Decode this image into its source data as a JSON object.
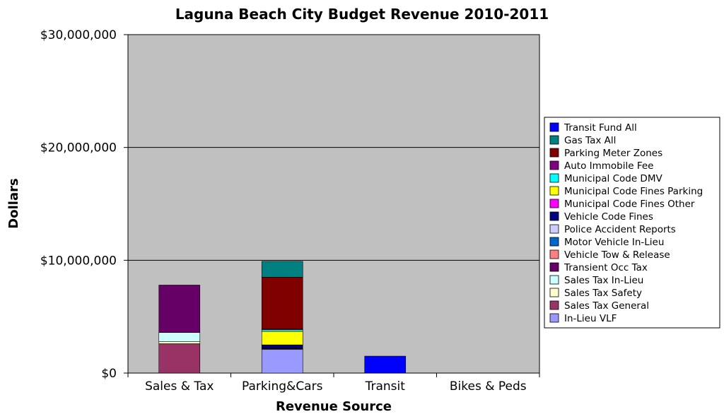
{
  "chart_data": {
    "type": "bar",
    "stacked": true,
    "title": "Laguna Beach City Budget Revenue 2010-2011",
    "xlabel": "Revenue Source",
    "ylabel": "Dollars",
    "ylim": [
      0,
      30000000
    ],
    "y_ticks": [
      0,
      10000000,
      20000000,
      30000000
    ],
    "y_tick_labels": [
      "$0",
      "$10,000,000",
      "$20,000,000",
      "$30,000,000"
    ],
    "grid": true,
    "legend_position": "right",
    "plot_background": "#c0c0c0",
    "categories": [
      "Sales & Tax",
      "Parking&Cars",
      "Transit",
      "Bikes & Peds"
    ],
    "series": [
      {
        "name": "In-Lieu VLF",
        "color": "#9999ff",
        "values": [
          0,
          2100000,
          0,
          0
        ]
      },
      {
        "name": "Sales Tax General",
        "color": "#993366",
        "values": [
          2600000,
          0,
          0,
          0
        ]
      },
      {
        "name": "Sales Tax Safety",
        "color": "#ffffcc",
        "values": [
          200000,
          0,
          0,
          0
        ]
      },
      {
        "name": "Sales Tax In-Lieu",
        "color": "#ccffff",
        "values": [
          800000,
          0,
          0,
          0
        ]
      },
      {
        "name": "Transient Occ Tax",
        "color": "#660066",
        "values": [
          4200000,
          0,
          0,
          0
        ]
      },
      {
        "name": "Vehicle Tow & Release",
        "color": "#ff8080",
        "values": [
          0,
          50000,
          0,
          0
        ]
      },
      {
        "name": "Motor Vehicle In-Lieu",
        "color": "#0066cc",
        "values": [
          0,
          50000,
          0,
          0
        ]
      },
      {
        "name": "Police Accident Reports",
        "color": "#ccccff",
        "values": [
          0,
          20000,
          0,
          0
        ]
      },
      {
        "name": "Vehicle Code Fines",
        "color": "#000080",
        "values": [
          0,
          250000,
          0,
          0
        ]
      },
      {
        "name": "Municipal Code Fines Other",
        "color": "#ff00ff",
        "values": [
          0,
          30000,
          0,
          0
        ]
      },
      {
        "name": "Municipal Code Fines Parking",
        "color": "#ffff00",
        "values": [
          0,
          1200000,
          0,
          0
        ]
      },
      {
        "name": "Municipal Code DMV",
        "color": "#00ffff",
        "values": [
          0,
          150000,
          0,
          0
        ]
      },
      {
        "name": "Auto Immobile Fee",
        "color": "#800080",
        "values": [
          0,
          50000,
          0,
          0
        ]
      },
      {
        "name": "Parking Meter Zones",
        "color": "#800000",
        "values": [
          0,
          4600000,
          0,
          0
        ]
      },
      {
        "name": "Gas Tax All",
        "color": "#008080",
        "values": [
          0,
          1400000,
          0,
          0
        ]
      },
      {
        "name": "Transit Fund All",
        "color": "#0000ff",
        "values": [
          0,
          0,
          1500000,
          0
        ]
      }
    ]
  }
}
